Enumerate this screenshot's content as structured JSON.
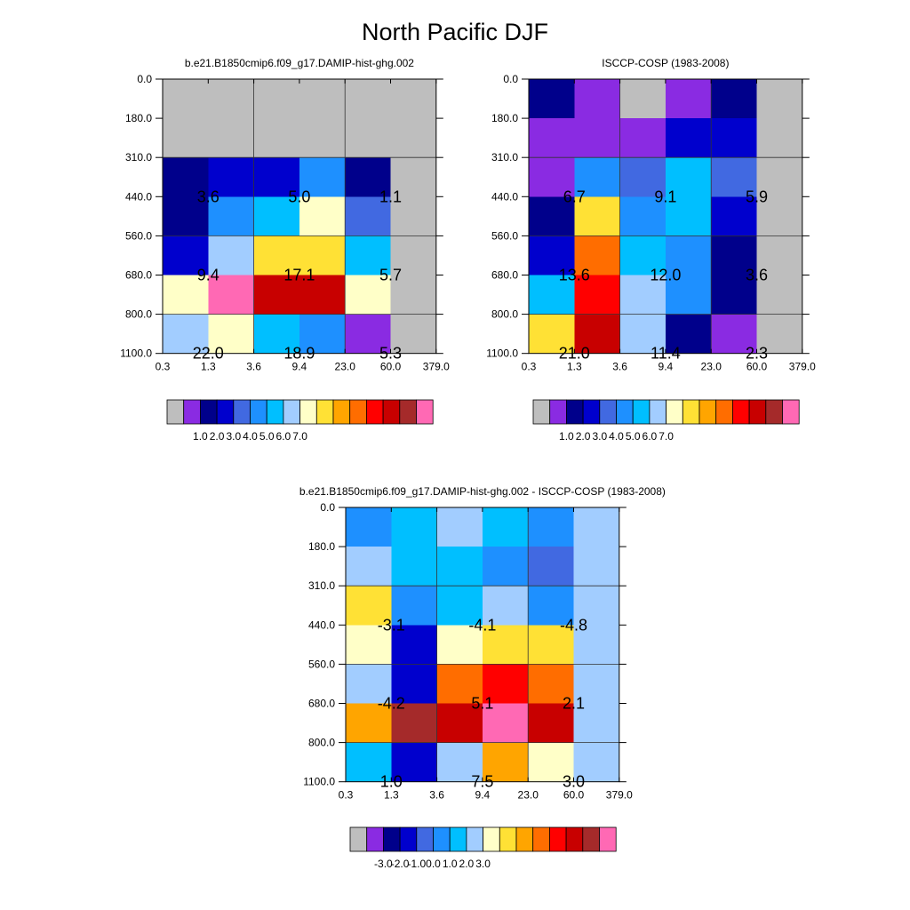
{
  "title": "North Pacific DJF",
  "palette": [
    "#bebebe",
    "#8a2be2",
    "#00008b",
    "#0000cd",
    "#4169e1",
    "#1e90ff",
    "#00bfff",
    "#a2cdff",
    "#ffffc8",
    "#ffe135",
    "#ffa500",
    "#ff6d00",
    "#ff0000",
    "#c80000",
    "#a52a2a",
    "#ff69b4"
  ],
  "chart_data": [
    {
      "type": "heatmap",
      "title": "b.e21.B1850cmip6.f09_g17.DAMIP-hist-ghg.002",
      "x_ticks": [
        "0.3",
        "1.3",
        "3.6",
        "9.4",
        "23.0",
        "60.0",
        "379.0"
      ],
      "y_ticks": [
        "0.0",
        "180.0",
        "310.0",
        "440.0",
        "560.0",
        "680.0",
        "800.0",
        "1100.0"
      ],
      "cell_colors": [
        [
          0,
          0,
          0,
          0,
          0,
          0
        ],
        [
          0,
          0,
          0,
          0,
          0,
          0
        ],
        [
          2,
          3,
          3,
          5,
          2,
          0
        ],
        [
          2,
          5,
          6,
          8,
          4,
          0
        ],
        [
          3,
          7,
          9,
          9,
          6,
          0
        ],
        [
          8,
          15,
          13,
          13,
          8,
          0
        ],
        [
          7,
          8,
          6,
          5,
          1,
          0
        ]
      ],
      "labels": [
        {
          "col": 0,
          "row": 1,
          "text": "3.6"
        },
        {
          "col": 1,
          "row": 1,
          "text": "5.0"
        },
        {
          "col": 2,
          "row": 1,
          "text": "1.1"
        },
        {
          "col": 0,
          "row": 2,
          "text": "9.4"
        },
        {
          "col": 1,
          "row": 2,
          "text": "17.1"
        },
        {
          "col": 2,
          "row": 2,
          "text": "5.7"
        },
        {
          "col": 0,
          "row": 3,
          "text": "22.0"
        },
        {
          "col": 1,
          "row": 3,
          "text": "18.9"
        },
        {
          "col": 2,
          "row": 3,
          "text": "5.3"
        }
      ],
      "colorbar": {
        "ticks": [
          "1.0",
          "2.0",
          "3.0",
          "4.0",
          "5.0",
          "6.0",
          "7.0"
        ]
      }
    },
    {
      "type": "heatmap",
      "title": "ISCCP-COSP (1983-2008)",
      "x_ticks": [
        "0.3",
        "1.3",
        "3.6",
        "9.4",
        "23.0",
        "60.0",
        "379.0"
      ],
      "y_ticks": [
        "0.0",
        "180.0",
        "310.0",
        "440.0",
        "560.0",
        "680.0",
        "800.0",
        "1100.0"
      ],
      "cell_colors": [
        [
          2,
          1,
          0,
          1,
          2,
          0
        ],
        [
          1,
          1,
          1,
          3,
          3,
          0
        ],
        [
          1,
          5,
          4,
          6,
          4,
          0
        ],
        [
          2,
          9,
          5,
          6,
          3,
          0
        ],
        [
          3,
          11,
          6,
          5,
          2,
          0
        ],
        [
          6,
          12,
          7,
          5,
          2,
          0
        ],
        [
          9,
          13,
          7,
          2,
          1,
          0
        ]
      ],
      "labels": [
        {
          "col": 0,
          "row": 1,
          "text": "6.7"
        },
        {
          "col": 1,
          "row": 1,
          "text": "9.1"
        },
        {
          "col": 2,
          "row": 1,
          "text": "5.9"
        },
        {
          "col": 0,
          "row": 2,
          "text": "13.6"
        },
        {
          "col": 1,
          "row": 2,
          "text": "12.0"
        },
        {
          "col": 2,
          "row": 2,
          "text": "3.6"
        },
        {
          "col": 0,
          "row": 3,
          "text": "21.0"
        },
        {
          "col": 1,
          "row": 3,
          "text": "11.4"
        },
        {
          "col": 2,
          "row": 3,
          "text": "2.3"
        }
      ],
      "colorbar": {
        "ticks": [
          "1.0",
          "2.0",
          "3.0",
          "4.0",
          "5.0",
          "6.0",
          "7.0"
        ]
      }
    },
    {
      "type": "heatmap",
      "title": "b.e21.B1850cmip6.f09_g17.DAMIP-hist-ghg.002 - ISCCP-COSP (1983-2008)",
      "x_ticks": [
        "0.3",
        "1.3",
        "3.6",
        "9.4",
        "23.0",
        "60.0",
        "379.0"
      ],
      "y_ticks": [
        "0.0",
        "180.0",
        "310.0",
        "440.0",
        "560.0",
        "680.0",
        "800.0",
        "1100.0"
      ],
      "cell_colors": [
        [
          5,
          6,
          7,
          6,
          5,
          7
        ],
        [
          7,
          6,
          6,
          5,
          4,
          7
        ],
        [
          9,
          5,
          6,
          7,
          5,
          7
        ],
        [
          8,
          3,
          8,
          9,
          9,
          7
        ],
        [
          7,
          3,
          11,
          12,
          11,
          7
        ],
        [
          10,
          14,
          13,
          15,
          13,
          7
        ],
        [
          6,
          3,
          7,
          10,
          8,
          7
        ]
      ],
      "labels": [
        {
          "col": 0,
          "row": 1,
          "text": "-3.1"
        },
        {
          "col": 1,
          "row": 1,
          "text": "-4.1"
        },
        {
          "col": 2,
          "row": 1,
          "text": "-4.8"
        },
        {
          "col": 0,
          "row": 2,
          "text": "-4.2"
        },
        {
          "col": 1,
          "row": 2,
          "text": "5.1"
        },
        {
          "col": 2,
          "row": 2,
          "text": "2.1"
        },
        {
          "col": 0,
          "row": 3,
          "text": "1.0"
        },
        {
          "col": 1,
          "row": 3,
          "text": "7.5"
        },
        {
          "col": 2,
          "row": 3,
          "text": "3.0"
        }
      ],
      "colorbar": {
        "ticks": [
          "-3.0",
          "-2.0",
          "-1.0",
          "0.0",
          "1.0",
          "2.0",
          "3.0"
        ]
      }
    }
  ]
}
